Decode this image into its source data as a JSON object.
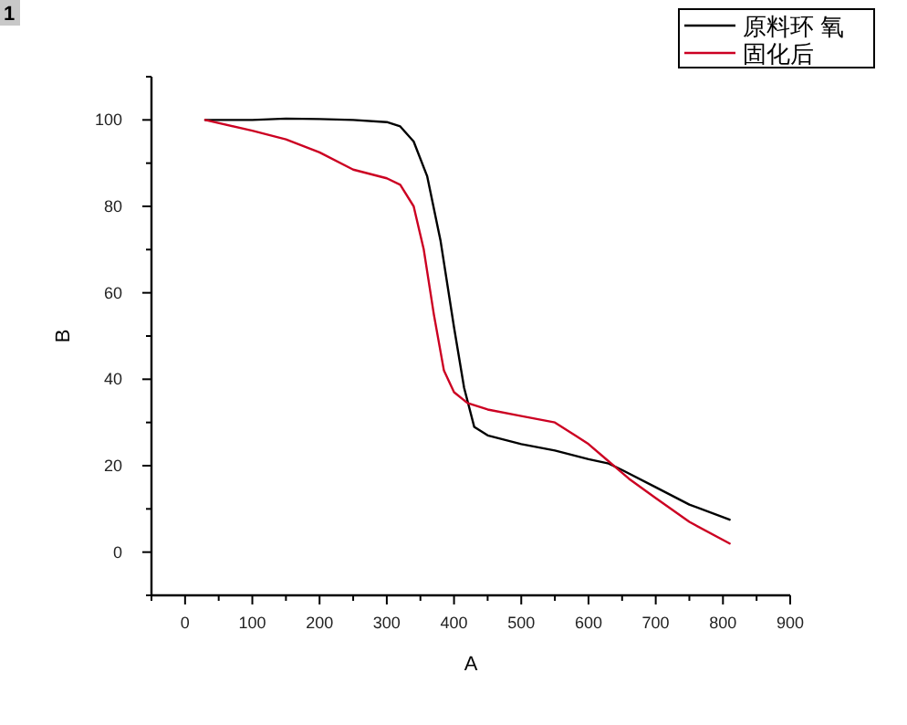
{
  "chart_data": {
    "type": "line",
    "xlabel": "A",
    "ylabel": "B",
    "annotations": [
      "1"
    ],
    "xlim": [
      -50,
      900
    ],
    "ylim": [
      -10,
      110
    ],
    "xticks": [
      0,
      100,
      200,
      300,
      400,
      500,
      600,
      700,
      800,
      900
    ],
    "yticks": [
      0,
      20,
      40,
      60,
      80,
      100
    ],
    "legend": "top right",
    "grid": false,
    "marker": "none",
    "line_style": "solid",
    "series": [
      {
        "name": "原料环 氧",
        "color": "#000000",
        "x": [
          30,
          100,
          150,
          200,
          250,
          300,
          320,
          340,
          360,
          380,
          400,
          415,
          430,
          450,
          500,
          550,
          600,
          630,
          650,
          700,
          750,
          810
        ],
        "values": [
          100,
          100,
          100.3,
          100.2,
          100,
          99.5,
          98.5,
          95,
          87,
          72,
          52,
          38,
          29,
          27,
          25,
          23.5,
          21.5,
          20.5,
          19,
          15,
          11,
          7.5
        ]
      },
      {
        "name": "固化后",
        "color": "#cc0022",
        "x": [
          30,
          100,
          150,
          200,
          250,
          300,
          320,
          340,
          355,
          370,
          385,
          400,
          420,
          450,
          500,
          550,
          580,
          600,
          630,
          660,
          700,
          750,
          810
        ],
        "values": [
          100,
          97.5,
          95.5,
          92.5,
          88.5,
          86.5,
          85,
          80,
          70,
          55,
          42,
          37,
          34.5,
          33,
          31.5,
          30,
          27,
          25,
          21,
          17,
          12.5,
          7,
          2
        ]
      }
    ]
  }
}
